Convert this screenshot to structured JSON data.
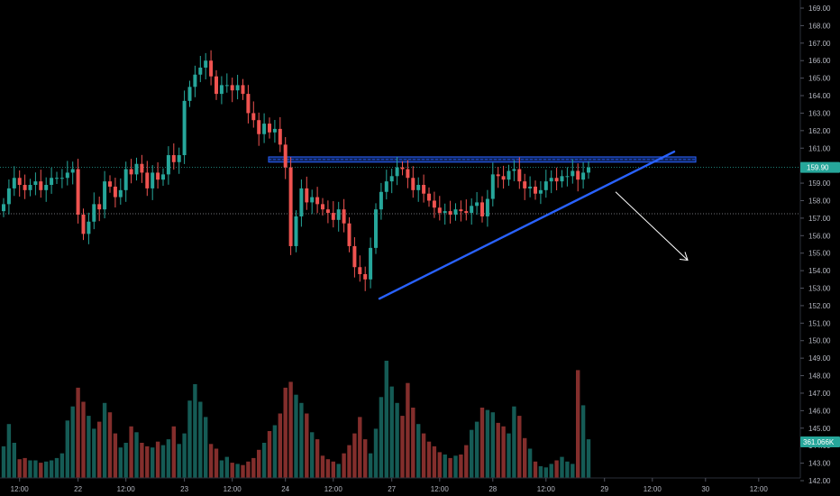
{
  "chart_data": {
    "type": "candlestick",
    "price_axis": {
      "ylim": [
        142.0,
        169.0
      ],
      "ticks": [
        "169.00",
        "168.00",
        "167.00",
        "166.00",
        "165.00",
        "164.00",
        "163.00",
        "162.00",
        "161.00",
        "160.00",
        "159.00",
        "158.00",
        "157.00",
        "156.00",
        "155.00",
        "154.00",
        "153.00",
        "152.00",
        "151.00",
        "150.00",
        "149.00",
        "148.00",
        "147.00",
        "146.00",
        "145.00",
        "144.00",
        "143.00",
        "142.00"
      ]
    },
    "time_axis": {
      "labels": [
        {
          "text": "12:00",
          "bar": 3
        },
        {
          "text": "22",
          "bar": 14
        },
        {
          "text": "12:00",
          "bar": 23
        },
        {
          "text": "23",
          "bar": 34
        },
        {
          "text": "12:00",
          "bar": 43
        },
        {
          "text": "24",
          "bar": 53
        },
        {
          "text": "12:00",
          "bar": 62
        },
        {
          "text": "27",
          "bar": 73
        },
        {
          "text": "12:00",
          "bar": 82
        },
        {
          "text": "28",
          "bar": 92
        },
        {
          "text": "12:00",
          "bar": 102
        },
        {
          "text": "29",
          "bar": 113
        },
        {
          "text": "12:00",
          "bar": 122
        },
        {
          "text": "30",
          "bar": 132
        },
        {
          "text": "12:00",
          "bar": 142
        }
      ]
    },
    "last_price": {
      "label": "159.90",
      "value": 159.9,
      "color": "#26a69a"
    },
    "volume_badge": {
      "label": "361.066K",
      "color": "#26a69a"
    },
    "reference_line": {
      "value": 157.25
    },
    "colors": {
      "up": "#26a69a",
      "down": "#ef5350",
      "trendline": "#2962ff",
      "zone": "#2962ff",
      "arrow": "#ffffff"
    },
    "closes": [
      157.8,
      158.7,
      159.3,
      158.9,
      158.6,
      158.9,
      159.1,
      158.6,
      158.9,
      159.3,
      159.3,
      159.3,
      159.6,
      159.8,
      157.2,
      156.1,
      156.8,
      157.8,
      157.5,
      159.1,
      158.8,
      158.2,
      158.6,
      159.8,
      159.5,
      160.1,
      159.6,
      158.7,
      159.6,
      159.2,
      159.5,
      160.6,
      160.2,
      160.6,
      163.7,
      164.5,
      165.2,
      165.6,
      166.0,
      165.1,
      164.1,
      164.6,
      164.6,
      164.3,
      164.6,
      164.1,
      163.0,
      162.6,
      161.8,
      162.4,
      161.9,
      162.1,
      161.2,
      159.9,
      155.4,
      157.1,
      158.7,
      157.9,
      158.2,
      157.8,
      157.5,
      157.3,
      156.9,
      157.5,
      156.7,
      155.4,
      154.2,
      153.8,
      153.5,
      155.3,
      157.5,
      158.5,
      159.1,
      159.4,
      159.9,
      159.8,
      159.3,
      158.6,
      158.9,
      158.4,
      158.0,
      157.6,
      157.3,
      157.4,
      157.2,
      157.5,
      157.4,
      157.3,
      157.7,
      157.9,
      157.1,
      158.1,
      159.5,
      159.4,
      159.2,
      159.7,
      159.8,
      159.1,
      158.7,
      158.8,
      158.4,
      158.6,
      159.1,
      159.3,
      159.1,
      159.4,
      159.4,
      159.7,
      159.2,
      159.6,
      159.9
    ],
    "opens": [
      157.4,
      157.8,
      158.7,
      159.3,
      158.9,
      158.6,
      158.9,
      159.1,
      158.6,
      158.9,
      159.3,
      159.3,
      159.3,
      159.6,
      159.8,
      157.2,
      156.1,
      156.8,
      157.8,
      157.5,
      159.1,
      158.8,
      158.2,
      158.6,
      159.8,
      159.5,
      160.1,
      159.6,
      158.7,
      159.6,
      159.2,
      159.5,
      160.6,
      160.2,
      160.6,
      163.7,
      164.5,
      165.2,
      165.6,
      166.0,
      165.1,
      164.1,
      164.6,
      164.6,
      164.3,
      164.6,
      164.1,
      163.0,
      162.6,
      161.8,
      162.4,
      161.9,
      162.1,
      161.2,
      159.9,
      155.4,
      157.1,
      158.7,
      157.9,
      158.2,
      157.8,
      157.5,
      157.3,
      156.9,
      157.5,
      156.7,
      155.4,
      154.2,
      153.8,
      153.5,
      155.3,
      157.5,
      158.5,
      159.1,
      159.4,
      159.9,
      159.8,
      159.3,
      158.6,
      158.9,
      158.4,
      158.0,
      157.6,
      157.3,
      157.4,
      157.2,
      157.5,
      157.4,
      157.3,
      157.7,
      157.9,
      157.1,
      158.1,
      159.5,
      159.4,
      159.2,
      159.7,
      159.8,
      159.1,
      158.7,
      158.8,
      158.4,
      158.6,
      159.1,
      159.3,
      159.1,
      159.4,
      159.4,
      159.7,
      159.2,
      159.6
    ],
    "volume_ratio": [
      0.27,
      0.46,
      0.3,
      0.16,
      0.17,
      0.15,
      0.15,
      0.13,
      0.14,
      0.15,
      0.17,
      0.21,
      0.49,
      0.61,
      0.77,
      0.65,
      0.53,
      0.42,
      0.48,
      0.64,
      0.56,
      0.38,
      0.26,
      0.3,
      0.44,
      0.39,
      0.3,
      0.27,
      0.26,
      0.31,
      0.28,
      0.33,
      0.44,
      0.29,
      0.38,
      0.66,
      0.8,
      0.65,
      0.52,
      0.29,
      0.25,
      0.15,
      0.18,
      0.13,
      0.12,
      0.11,
      0.14,
      0.17,
      0.24,
      0.3,
      0.4,
      0.45,
      0.55,
      0.77,
      0.82,
      0.71,
      0.64,
      0.55,
      0.39,
      0.33,
      0.19,
      0.16,
      0.14,
      0.12,
      0.21,
      0.28,
      0.38,
      0.52,
      0.33,
      0.21,
      0.42,
      0.69,
      1.0,
      0.78,
      0.64,
      0.53,
      0.81,
      0.6,
      0.46,
      0.38,
      0.31,
      0.27,
      0.22,
      0.2,
      0.17,
      0.19,
      0.2,
      0.28,
      0.41,
      0.48,
      0.6,
      0.58,
      0.56,
      0.47,
      0.44,
      0.38,
      0.61,
      0.53,
      0.34,
      0.25,
      0.14,
      0.1,
      0.09,
      0.12,
      0.15,
      0.18,
      0.14,
      0.12,
      0.92,
      0.62,
      0.33
    ]
  }
}
